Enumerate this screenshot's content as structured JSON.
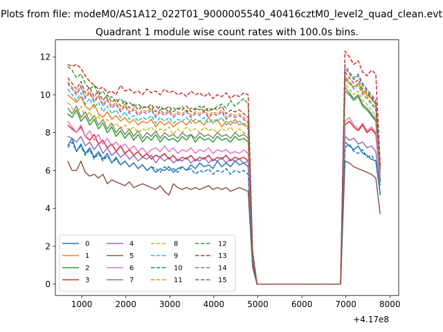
{
  "chart_data": {
    "type": "line",
    "suptitle": "Plots from file: modeM0/AS1A12_022T01_9000005540_40416cztM0_level2_quad_clean.evt",
    "title": "Quadrant 1 module wise count rates with 100.0s bins.",
    "xlabel": "",
    "ylabel": "",
    "x_offset_label": "+4.17e8",
    "xlim": [
      400,
      8200
    ],
    "ylim": [
      -0.6,
      12.9
    ],
    "xticks": [
      1000,
      2000,
      3000,
      4000,
      5000,
      6000,
      7000,
      8000
    ],
    "yticks": [
      0,
      2,
      4,
      6,
      8,
      10,
      12
    ],
    "grid": false,
    "legend_position": "lower-left",
    "x_segments": {
      "first": {
        "start": 680,
        "end": 4810,
        "step": 100
      },
      "gap": [
        4880,
        4980,
        6880
      ],
      "second": {
        "start": 6980,
        "end": 7780,
        "step": 100
      }
    },
    "series": [
      {
        "name": "0",
        "color": "#1f77b4",
        "dash": "solid",
        "first": [
          7.3,
          7.7,
          7.0,
          7.4,
          6.9,
          7.2,
          6.7,
          7.0,
          6.6,
          6.9,
          6.4,
          6.7,
          6.3,
          6.5,
          6.2,
          6.4,
          6.1,
          6.3,
          6.0,
          6.2,
          5.9,
          6.1,
          6.0,
          6.2,
          5.9,
          6.1,
          6.2,
          6.0,
          6.3,
          6.1,
          6.4,
          6.2,
          6.3,
          6.1,
          6.5,
          6.2,
          6.4,
          6.2,
          6.5,
          6.3,
          6.4,
          6.2
        ],
        "second": [
          7.5,
          7.3,
          7.1,
          7.3,
          6.9,
          6.8,
          6.6,
          6.5,
          4.8
        ]
      },
      {
        "name": "1",
        "color": "#ff7f0e",
        "dash": "solid",
        "first": [
          10.0,
          9.8,
          9.6,
          9.9,
          9.4,
          9.2,
          9.5,
          9.0,
          8.8,
          9.1,
          8.7,
          8.9,
          8.6,
          8.8,
          8.5,
          8.7,
          8.4,
          8.6,
          8.5,
          8.7,
          8.3,
          8.6,
          8.4,
          8.6,
          8.3,
          8.5,
          8.6,
          8.4,
          8.7,
          8.5,
          8.6,
          8.4,
          8.8,
          8.5,
          8.7,
          8.3,
          8.6,
          8.4,
          8.7,
          8.4,
          8.5,
          8.3
        ],
        "second": [
          10.8,
          10.6,
          10.4,
          10.6,
          10.2,
          10.0,
          9.8,
          9.5,
          6.0
        ]
      },
      {
        "name": "2",
        "color": "#2ca02c",
        "dash": "solid",
        "first": [
          9.0,
          8.8,
          9.2,
          8.6,
          8.9,
          8.4,
          8.7,
          8.2,
          8.5,
          8.0,
          8.3,
          7.8,
          8.1,
          7.7,
          8.0,
          7.6,
          7.9,
          7.5,
          7.8,
          7.6,
          7.9,
          7.5,
          7.8,
          7.6,
          7.7,
          7.5,
          7.8,
          7.6,
          7.9,
          7.5,
          7.8,
          7.6,
          7.7,
          7.5,
          7.8,
          7.6,
          7.7,
          7.5,
          7.8,
          7.6,
          7.7,
          7.5
        ],
        "second": [
          10.2,
          10.0,
          9.7,
          9.9,
          9.4,
          9.2,
          8.9,
          8.6,
          5.4
        ]
      },
      {
        "name": "3",
        "color": "#d62728",
        "dash": "solid",
        "first": [
          8.4,
          8.2,
          8.0,
          8.3,
          7.8,
          7.6,
          7.9,
          7.4,
          7.6,
          7.2,
          7.4,
          7.0,
          7.3,
          6.9,
          7.1,
          6.8,
          7.0,
          6.7,
          6.9,
          6.6,
          6.8,
          6.7,
          6.9,
          6.6,
          6.8,
          6.5,
          6.7,
          6.6,
          6.8,
          6.5,
          6.7,
          6.6,
          6.8,
          6.5,
          6.7,
          6.6,
          6.8,
          6.5,
          6.7,
          6.6,
          6.7,
          6.5
        ],
        "second": [
          8.4,
          8.6,
          8.3,
          8.1,
          8.4,
          8.0,
          8.2,
          7.9,
          5.6
        ]
      },
      {
        "name": "4",
        "color": "#9467bd",
        "dash": "solid",
        "first": [
          7.8,
          7.7,
          7.5,
          7.8,
          7.3,
          7.5,
          7.1,
          7.4,
          6.9,
          7.2,
          6.8,
          7.0,
          6.7,
          6.9,
          6.6,
          6.8,
          6.5,
          6.7,
          6.6,
          6.8,
          6.4,
          6.7,
          6.5,
          6.7,
          6.4,
          6.6,
          6.5,
          6.7,
          6.4,
          6.6,
          6.5,
          6.7,
          6.4,
          6.6,
          6.5,
          6.7,
          6.4,
          6.6,
          6.5,
          6.6,
          6.4,
          6.5
        ],
        "second": [
          7.8,
          7.6,
          7.7,
          7.4,
          7.5,
          7.2,
          7.3,
          7.0,
          5.2
        ]
      },
      {
        "name": "5",
        "color": "#8c564b",
        "dash": "solid",
        "first": [
          6.5,
          6.0,
          6.0,
          6.5,
          5.9,
          5.7,
          5.8,
          5.6,
          5.8,
          5.3,
          5.5,
          5.4,
          5.3,
          5.2,
          5.4,
          5.1,
          5.2,
          5.3,
          5.2,
          5.1,
          5.0,
          5.2,
          4.9,
          4.7,
          5.3,
          5.1,
          5.0,
          5.1,
          5.0,
          5.1,
          5.0,
          5.1,
          5.2,
          5.0,
          5.1,
          5.0,
          5.1,
          4.9,
          5.0,
          5.1,
          5.0,
          4.9
        ],
        "second": [
          6.5,
          6.4,
          6.2,
          6.1,
          6.0,
          5.9,
          5.8,
          5.6,
          3.7
        ]
      },
      {
        "name": "6",
        "color": "#e377c2",
        "dash": "solid",
        "first": [
          8.6,
          8.3,
          8.0,
          8.4,
          7.8,
          8.1,
          7.6,
          7.9,
          7.4,
          7.7,
          7.3,
          7.5,
          7.2,
          7.4,
          7.1,
          7.3,
          7.0,
          7.2,
          6.9,
          7.1,
          7.2,
          7.0,
          7.3,
          7.0,
          7.2,
          6.9,
          7.1,
          7.0,
          7.2,
          6.9,
          7.1,
          7.0,
          7.2,
          6.9,
          7.1,
          7.0,
          7.1,
          6.9,
          7.0,
          6.9,
          7.1,
          6.9
        ],
        "second": [
          8.6,
          8.8,
          8.4,
          8.2,
          8.5,
          8.1,
          8.3,
          8.0,
          5.8
        ]
      },
      {
        "name": "7",
        "color": "#7f7f7f",
        "dash": "solid",
        "first": [
          9.3,
          9.0,
          9.4,
          8.8,
          9.1,
          8.6,
          8.9,
          8.4,
          8.7,
          8.2,
          8.5,
          8.0,
          8.3,
          7.9,
          8.2,
          7.8,
          8.1,
          7.7,
          8.0,
          7.8,
          8.1,
          7.7,
          8.0,
          7.8,
          7.9,
          7.7,
          8.0,
          7.8,
          7.9,
          7.7,
          8.0,
          7.8,
          7.9,
          7.7,
          8.0,
          7.8,
          7.9,
          7.7,
          8.0,
          7.8,
          7.9,
          7.7
        ],
        "second": [
          10.4,
          10.1,
          9.8,
          10.0,
          9.5,
          9.3,
          9.0,
          8.7,
          5.5
        ]
      },
      {
        "name": "8",
        "color": "#bcbd22",
        "dash": "dashed",
        "first": [
          9.6,
          9.3,
          9.0,
          9.4,
          8.8,
          9.1,
          8.6,
          8.9,
          8.4,
          8.7,
          8.3,
          8.5,
          8.2,
          8.4,
          8.1,
          8.3,
          8.0,
          8.2,
          8.1,
          8.3,
          8.0,
          8.2,
          8.1,
          8.3,
          7.9,
          8.2,
          8.0,
          8.3,
          8.1,
          8.2,
          8.0,
          8.3,
          8.1,
          8.2,
          8.0,
          8.2,
          8.1,
          8.3,
          8.0,
          8.2,
          8.0,
          7.9
        ],
        "second": [
          10.6,
          10.3,
          10.0,
          10.2,
          9.7,
          9.5,
          9.2,
          8.9,
          5.7
        ]
      },
      {
        "name": "9",
        "color": "#17becf",
        "dash": "dashed",
        "first": [
          10.3,
          10.0,
          9.7,
          10.1,
          9.5,
          9.8,
          9.3,
          9.6,
          9.1,
          9.4,
          9.0,
          9.2,
          8.8,
          9.1,
          8.7,
          8.9,
          8.6,
          8.8,
          8.7,
          8.9,
          8.5,
          8.8,
          8.6,
          8.8,
          8.5,
          8.7,
          8.6,
          8.8,
          8.5,
          8.7,
          8.6,
          8.8,
          8.5,
          8.7,
          8.6,
          8.8,
          8.4,
          8.6,
          8.5,
          8.6,
          8.4,
          8.2
        ],
        "second": [
          10.9,
          10.6,
          10.3,
          10.5,
          10.0,
          9.8,
          9.5,
          9.2,
          5.9
        ]
      },
      {
        "name": "10",
        "color": "#1f77b4",
        "dash": "dashed",
        "first": [
          7.2,
          7.5,
          7.0,
          7.3,
          6.8,
          7.1,
          6.6,
          6.9,
          6.5,
          6.8,
          6.4,
          6.6,
          6.3,
          6.5,
          6.2,
          6.4,
          6.1,
          6.3,
          6.0,
          6.2,
          6.1,
          5.9,
          6.2,
          6.0,
          6.1,
          5.9,
          6.2,
          6.0,
          6.1,
          5.8,
          6.0,
          5.9,
          6.1,
          5.8,
          6.0,
          5.9,
          6.1,
          5.8,
          6.0,
          5.9,
          6.0,
          5.8
        ],
        "second": [
          7.2,
          7.4,
          7.0,
          6.9,
          7.1,
          6.7,
          6.8,
          6.5,
          4.7
        ]
      },
      {
        "name": "11",
        "color": "#ff7f0e",
        "dash": "dashed",
        "first": [
          10.7,
          10.4,
          10.1,
          10.5,
          9.9,
          10.2,
          9.7,
          10.0,
          9.5,
          9.8,
          9.4,
          9.6,
          9.2,
          9.5,
          9.1,
          9.3,
          9.0,
          9.2,
          9.1,
          9.3,
          8.9,
          9.2,
          9.0,
          9.2,
          8.9,
          9.1,
          9.0,
          9.2,
          8.9,
          9.1,
          9.0,
          9.2,
          8.9,
          9.1,
          9.0,
          9.2,
          8.8,
          9.0,
          8.9,
          9.0,
          8.8,
          8.6
        ],
        "second": [
          11.0,
          10.7,
          10.4,
          10.6,
          10.1,
          9.9,
          9.6,
          9.3,
          6.0
        ]
      },
      {
        "name": "12",
        "color": "#2ca02c",
        "dash": "dashed",
        "first": [
          11.5,
          11.3,
          10.9,
          11.1,
          10.6,
          10.3,
          10.5,
          10.0,
          10.2,
          9.8,
          9.9,
          9.6,
          9.8,
          9.5,
          9.6,
          9.4,
          9.5,
          9.3,
          9.4,
          9.2,
          9.4,
          9.2,
          9.3,
          9.1,
          9.3,
          9.2,
          9.4,
          9.1,
          9.3,
          9.2,
          9.4,
          9.1,
          9.3,
          9.2,
          9.4,
          9.5,
          9.3,
          9.7,
          9.4,
          9.6,
          9.8,
          9.5
        ],
        "second": [
          11.4,
          11.1,
          10.8,
          11.0,
          10.5,
          10.2,
          9.9,
          9.6,
          6.1
        ]
      },
      {
        "name": "13",
        "color": "#d62728",
        "dash": "dashed",
        "first": [
          11.6,
          11.5,
          11.6,
          11.4,
          11.0,
          10.7,
          10.5,
          10.3,
          10.4,
          10.1,
          10.2,
          10.0,
          10.5,
          10.2,
          10.3,
          10.1,
          10.2,
          10.0,
          10.3,
          10.1,
          10.2,
          10.0,
          10.3,
          10.1,
          10.2,
          10.0,
          10.1,
          9.9,
          10.2,
          10.0,
          10.1,
          9.9,
          10.1,
          9.8,
          10.0,
          9.9,
          10.1,
          9.8,
          10.0,
          9.9,
          10.1,
          10.0
        ],
        "second": [
          12.3,
          12.0,
          11.6,
          11.8,
          11.2,
          11.0,
          11.3,
          11.1,
          6.3
        ]
      },
      {
        "name": "14",
        "color": "#9467bd",
        "dash": "dashed",
        "first": [
          10.6,
          10.3,
          10.0,
          10.4,
          9.8,
          10.1,
          9.6,
          9.9,
          9.4,
          9.7,
          9.3,
          9.5,
          9.1,
          9.4,
          9.0,
          9.2,
          8.9,
          9.1,
          9.0,
          9.2,
          8.8,
          9.1,
          8.9,
          9.1,
          8.8,
          9.0,
          8.9,
          9.1,
          8.8,
          9.0,
          8.9,
          9.1,
          8.8,
          9.0,
          8.9,
          9.1,
          8.7,
          8.9,
          8.8,
          8.9,
          8.7,
          8.5
        ],
        "second": [
          11.6,
          11.2,
          10.9,
          11.1,
          10.6,
          10.3,
          10.0,
          9.7,
          6.2
        ]
      },
      {
        "name": "15",
        "color": "#8c564b",
        "dash": "dashed",
        "first": [
          10.9,
          10.6,
          10.3,
          10.7,
          10.1,
          10.4,
          9.9,
          10.2,
          9.7,
          10.0,
          9.6,
          9.8,
          9.4,
          9.7,
          9.3,
          9.5,
          9.2,
          9.4,
          9.3,
          9.5,
          9.1,
          9.4,
          9.2,
          9.4,
          9.1,
          9.3,
          9.2,
          9.4,
          9.1,
          9.3,
          9.2,
          9.4,
          9.1,
          9.3,
          9.2,
          9.4,
          9.0,
          9.2,
          9.1,
          9.2,
          9.0,
          8.8
        ],
        "second": [
          11.2,
          10.9,
          10.6,
          10.8,
          10.3,
          10.1,
          9.8,
          9.5,
          6.1
        ]
      }
    ]
  }
}
